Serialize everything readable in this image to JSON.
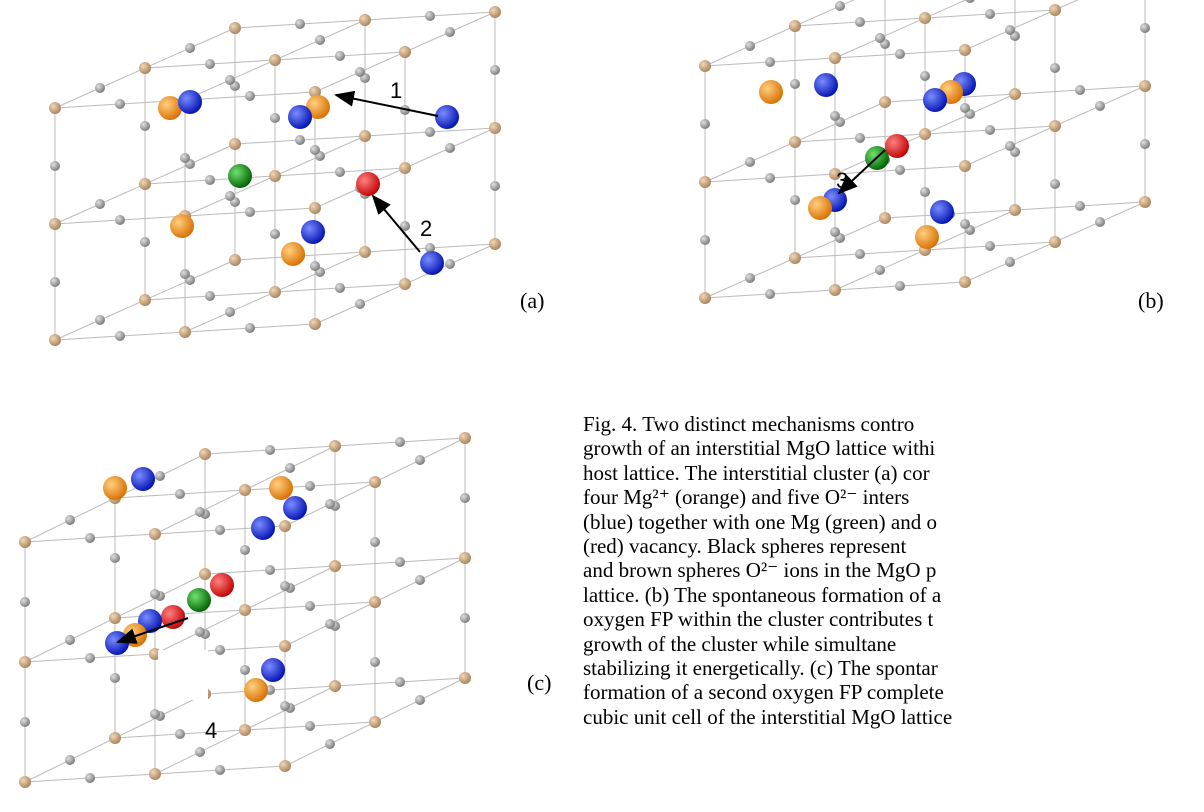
{
  "figure": {
    "panels": [
      {
        "label": "(a)",
        "arrows": [
          "1",
          "2"
        ]
      },
      {
        "label": "(b)",
        "arrows": [
          "3"
        ]
      },
      {
        "label": "(c)",
        "arrows": [
          "4"
        ]
      }
    ],
    "caption": {
      "lines": [
        "Fig. 4. Two distinct mechanisms contro",
        "growth of an interstitial MgO lattice withi",
        "host lattice. The interstitial cluster (a) cor",
        "four Mg²⁺ (orange) and five O²⁻ inters",
        "(blue) together with one Mg (green) and o",
        "(red) vacancy. Black spheres represent",
        "and brown spheres O²⁻ ions in the MgO p",
        "lattice. (b) The spontaneous formation of a",
        "oxygen FP within the cluster contributes t",
        "growth of the cluster while simultane",
        "stabilizing it energetically. (c) The spontar",
        "formation of a second oxygen FP complete",
        "cubic unit cell of the interstitial MgO lattice"
      ]
    }
  }
}
